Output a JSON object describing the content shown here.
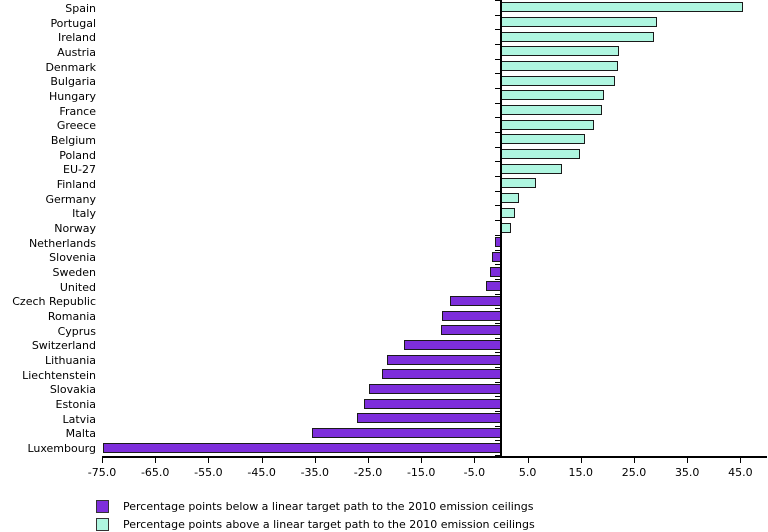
{
  "chart_data": {
    "type": "bar",
    "orientation": "horizontal",
    "title": "",
    "xlabel": "",
    "ylabel": "",
    "xlim": [
      -75,
      50
    ],
    "xticks": [
      -75.0,
      -65.0,
      -55.0,
      -45.0,
      -35.0,
      -25.0,
      -15.0,
      -5.0,
      5.0,
      15.0,
      25.0,
      35.0,
      45.0
    ],
    "grid": false,
    "legend_position": "bottom-left",
    "categories": [
      "Spain",
      "Portugal",
      "Ireland",
      "Austria",
      "Denmark",
      "Bulgaria",
      "Hungary",
      "France",
      "Greece",
      "Belgium",
      "Poland",
      "EU-27",
      "Finland",
      "Germany",
      "Italy",
      "Norway",
      "Netherlands",
      "Slovenia",
      "Sweden",
      "United",
      "Czech Republic",
      "Romania",
      "Cyprus",
      "Switzerland",
      "Lithuania",
      "Liechtenstein",
      "Slovakia",
      "Estonia",
      "Latvia",
      "Malta",
      "Luxembourg"
    ],
    "values": [
      45.5,
      29.4,
      28.7,
      22.2,
      21.9,
      21.5,
      19.3,
      19.0,
      17.5,
      15.8,
      14.9,
      11.5,
      6.6,
      3.4,
      2.7,
      1.9,
      -1.2,
      -1.6,
      -2.1,
      -2.8,
      -9.5,
      -11.0,
      -11.3,
      -18.2,
      -21.4,
      -22.4,
      -24.9,
      -25.8,
      -27.1,
      -35.5,
      -74.8
    ],
    "colors": {
      "above": "#aff6e0",
      "below": "#7d2edb",
      "bar_border": "#1a1a1a",
      "axis": "#000000"
    },
    "legend": [
      {
        "key": "below",
        "color": "#7d2edb",
        "label": "Percentage points below a linear target path to the 2010 emission ceilings"
      },
      {
        "key": "above",
        "color": "#aff6e0",
        "label": "Percentage points above a linear target path to the 2010 emission ceilings"
      }
    ]
  }
}
